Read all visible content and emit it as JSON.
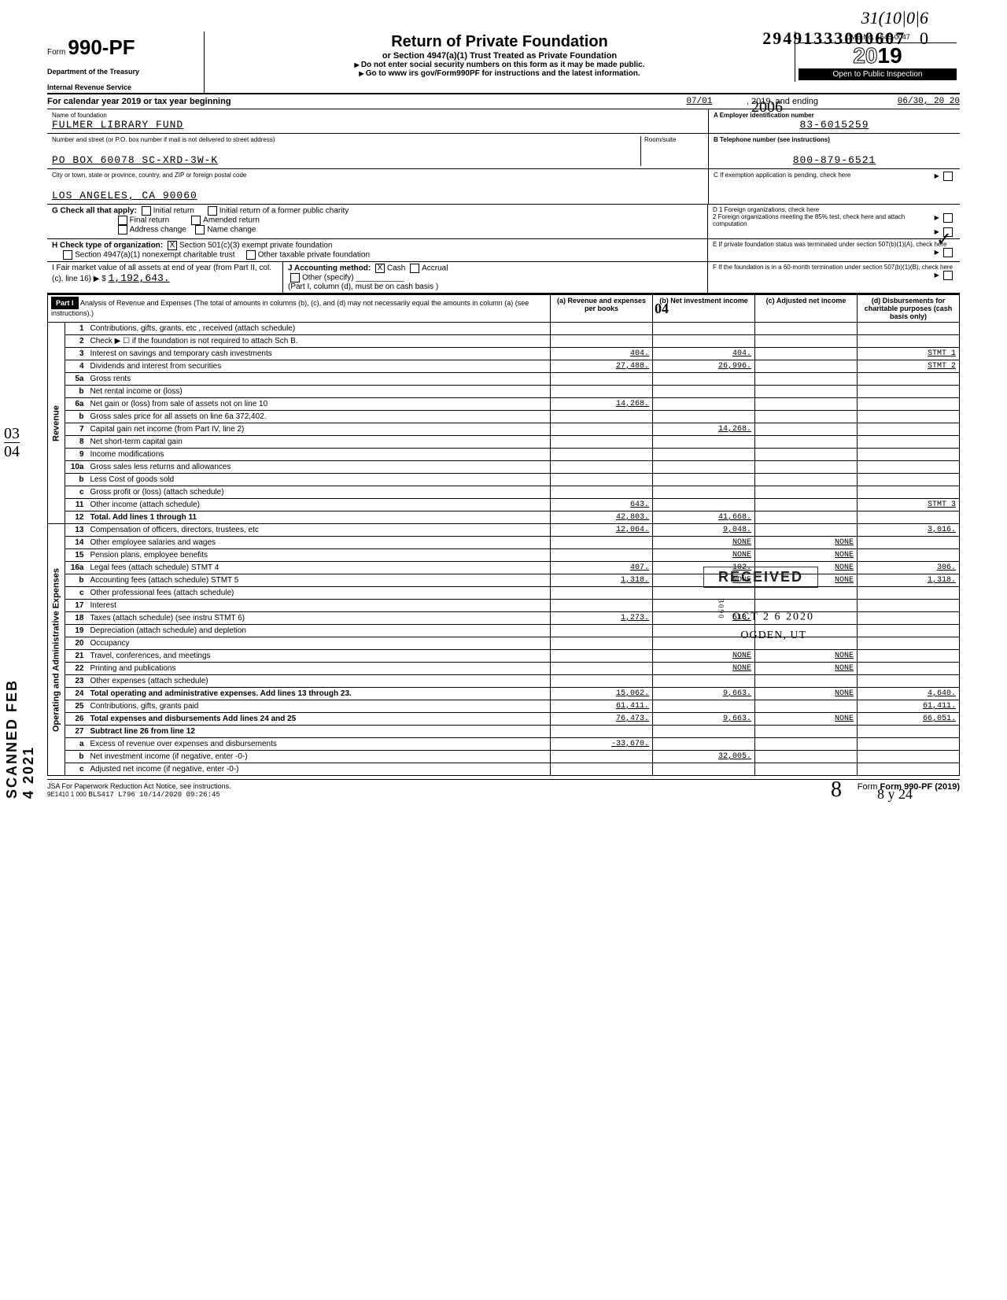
{
  "handwritten": {
    "top1": "31(10|0|6",
    "top2": "29491333000607",
    "zero": "0",
    "year2006": "2006",
    "checkmark": "✓",
    "frac_top": "03",
    "frac_bot": "04",
    "scan_text": "SCANNED FEB  4  2021",
    "h04": "04",
    "sig": "8",
    "h824": "8 y 24"
  },
  "header": {
    "form_word": "Form",
    "form_no": "990-PF",
    "dept1": "Department of the Treasury",
    "dept2": "Internal Revenue Service",
    "title": "Return of Private Foundation",
    "subtitle": "or Section 4947(a)(1) Trust Treated as Private Foundation",
    "note1": "Do not enter social security numbers on this form as it may be made public.",
    "note2": "Go to www irs gov/Form990PF for instructions and the latest information.",
    "omb": "OMB No. 1545-0047",
    "year_outline": "20",
    "year_bold": "19",
    "inspection": "Open to Public Inspection"
  },
  "calendar": {
    "label": "For calendar year 2019 or tax year beginning",
    "begin": "07/01",
    "mid": ", 2019, and ending",
    "end": "06/30, 20 20"
  },
  "name_block": {
    "name_label": "Name of foundation",
    "name": "FULMER LIBRARY FUND",
    "addr_label": "Number and street (or P.O. box number if mail is not delivered to street address)",
    "room_label": "Room/suite",
    "addr": "PO BOX 60078 SC-XRD-3W-K",
    "city_label": "City or town, state or province, country, and ZIP or foreign postal code",
    "city": "LOS ANGELES, CA 90060",
    "ein_label": "A  Employer identification number",
    "ein": "83-6015259",
    "phone_label": "B  Telephone number (see instructions)",
    "phone": "800-879-6521",
    "c_label": "C  If exemption application is pending, check here"
  },
  "boxG": {
    "label": "G  Check all that apply:",
    "opt1": "Initial return",
    "opt2": "Initial return of a former public charity",
    "opt3": "Final return",
    "opt4": "Amended return",
    "opt5": "Address change",
    "opt6": "Name change"
  },
  "boxD": {
    "d1": "D  1  Foreign organizations, check here",
    "d2": "2  Foreign organizations meeting the 85% test, check here and attach computation"
  },
  "boxH": {
    "label": "H  Check type of organization:",
    "opt1": "Section 501(c)(3) exempt private foundation",
    "opt2": "Section 4947(a)(1) nonexempt charitable trust",
    "opt3": "Other taxable private foundation"
  },
  "boxE": "E  If private foundation status was terminated under section 507(b)(1)(A), check here",
  "boxI": {
    "label": "I  Fair market value of all assets at end of year (from Part II, col. (c), line 16)",
    "value": "1,192,643.",
    "arrow": "▶ $"
  },
  "boxJ": {
    "label": "J Accounting method:",
    "cash": "Cash",
    "accrual": "Accrual",
    "other": "Other (specify)",
    "note": "(Part I, column (d), must be on cash basis )"
  },
  "boxF": "F  If the foundation is in a 60-month termination under section 507(b)(1)(B), check here",
  "part1": {
    "title": "Part I",
    "desc": "Analysis of Revenue and Expenses (The total of amounts in columns (b), (c), and (d) may not necessarily equal the amounts in column (a) (see instructions).)",
    "col_a": "(a) Revenue and expenses per books",
    "col_b": "(b) Net investment income",
    "col_c": "(c) Adjusted net income",
    "col_d": "(d) Disbursements for charitable purposes (cash basis only)"
  },
  "sidebars": {
    "revenue": "Revenue",
    "expenses": "Operating and Administrative Expenses"
  },
  "lines": [
    {
      "n": "1",
      "d": "Contributions, gifts, grants, etc , received (attach schedule)",
      "a": "",
      "b": "",
      "c": "",
      "dd": ""
    },
    {
      "n": "2",
      "d": "Check ▶ ☐  if the foundation is not required to attach Sch B.",
      "a": "",
      "b": "",
      "c": "",
      "dd": ""
    },
    {
      "n": "3",
      "d": "Interest on savings and temporary cash investments",
      "a": "404.",
      "b": "404.",
      "c": "",
      "dd": "STMT 1"
    },
    {
      "n": "4",
      "d": "Dividends and interest from securities",
      "a": "27,488.",
      "b": "26,996.",
      "c": "",
      "dd": "STMT 2"
    },
    {
      "n": "5a",
      "d": "Gross rents",
      "a": "",
      "b": "",
      "c": "",
      "dd": ""
    },
    {
      "n": "b",
      "d": "Net rental income or (loss)",
      "a": "",
      "b": "",
      "c": "",
      "dd": ""
    },
    {
      "n": "6a",
      "d": "Net gain or (loss) from sale of assets not on line 10",
      "a": "14,268.",
      "b": "",
      "c": "",
      "dd": ""
    },
    {
      "n": "b",
      "d": "Gross sales price for all assets on line 6a          372,402.",
      "a": "",
      "b": "",
      "c": "",
      "dd": ""
    },
    {
      "n": "7",
      "d": "Capital gain net income (from Part IV, line 2)",
      "a": "",
      "b": "14,268.",
      "c": "",
      "dd": ""
    },
    {
      "n": "8",
      "d": "Net short-term capital gain",
      "a": "",
      "b": "",
      "c": "",
      "dd": ""
    },
    {
      "n": "9",
      "d": "Income modifications",
      "a": "",
      "b": "",
      "c": "",
      "dd": ""
    },
    {
      "n": "10a",
      "d": "Gross sales less returns and allowances",
      "a": "",
      "b": "",
      "c": "",
      "dd": ""
    },
    {
      "n": "b",
      "d": "Less Cost of goods sold",
      "a": "",
      "b": "",
      "c": "",
      "dd": ""
    },
    {
      "n": "c",
      "d": "Gross profit or (loss) (attach schedule)",
      "a": "",
      "b": "",
      "c": "",
      "dd": ""
    },
    {
      "n": "11",
      "d": "Other income (attach schedule)",
      "a": "643.",
      "b": "",
      "c": "",
      "dd": "STMT 3"
    },
    {
      "n": "12",
      "d": "Total. Add lines 1 through 11",
      "a": "42,803.",
      "b": "41,668.",
      "c": "",
      "dd": ""
    },
    {
      "n": "13",
      "d": "Compensation of officers, directors, trustees, etc",
      "a": "12,064.",
      "b": "9,048.",
      "c": "",
      "dd": "3,016."
    },
    {
      "n": "14",
      "d": "Other employee salaries and wages",
      "a": "",
      "b": "NONE",
      "c": "NONE",
      "dd": ""
    },
    {
      "n": "15",
      "d": "Pension plans, employee benefits",
      "a": "",
      "b": "NONE",
      "c": "NONE",
      "dd": ""
    },
    {
      "n": "16a",
      "d": "Legal fees (attach schedule)   STMT 4",
      "a": "407.",
      "b": "102.",
      "c": "NONE",
      "dd": "306."
    },
    {
      "n": "b",
      "d": "Accounting fees (attach schedule) STMT 5",
      "a": "1,318.",
      "b": "NONE",
      "c": "NONE",
      "dd": "1,318."
    },
    {
      "n": "c",
      "d": "Other professional fees (attach schedule)",
      "a": "",
      "b": "",
      "c": "",
      "dd": ""
    },
    {
      "n": "17",
      "d": "Interest",
      "a": "",
      "b": "",
      "c": "",
      "dd": ""
    },
    {
      "n": "18",
      "d": "Taxes (attach schedule) (see instru STMT 6)",
      "a": "1,273.",
      "b": "513.",
      "c": "",
      "dd": ""
    },
    {
      "n": "19",
      "d": "Depreciation (attach schedule) and depletion",
      "a": "",
      "b": "",
      "c": "",
      "dd": ""
    },
    {
      "n": "20",
      "d": "Occupancy",
      "a": "",
      "b": "",
      "c": "",
      "dd": ""
    },
    {
      "n": "21",
      "d": "Travel, conferences, and meetings",
      "a": "",
      "b": "NONE",
      "c": "NONE",
      "dd": ""
    },
    {
      "n": "22",
      "d": "Printing and publications",
      "a": "",
      "b": "NONE",
      "c": "NONE",
      "dd": ""
    },
    {
      "n": "23",
      "d": "Other expenses (attach schedule)",
      "a": "",
      "b": "",
      "c": "",
      "dd": ""
    },
    {
      "n": "24",
      "d": "Total operating and administrative expenses. Add lines 13 through 23.",
      "a": "15,062.",
      "b": "9,663.",
      "c": "NONE",
      "dd": "4,640."
    },
    {
      "n": "25",
      "d": "Contributions, gifts, grants paid",
      "a": "61,411.",
      "b": "",
      "c": "",
      "dd": "61,411."
    },
    {
      "n": "26",
      "d": "Total expenses and disbursements  Add lines 24 and 25",
      "a": "76,473.",
      "b": "9,663.",
      "c": "NONE",
      "dd": "66,051."
    },
    {
      "n": "27",
      "d": "Subtract line 26 from line 12",
      "a": "",
      "b": "",
      "c": "",
      "dd": ""
    },
    {
      "n": "a",
      "d": "Excess of revenue over expenses and disbursements",
      "a": "-33,670.",
      "b": "",
      "c": "",
      "dd": ""
    },
    {
      "n": "b",
      "d": "Net investment income (if negative, enter -0-)",
      "a": "",
      "b": "32,005.",
      "c": "",
      "dd": ""
    },
    {
      "n": "c",
      "d": "Adjusted net income (if negative, enter -0-)",
      "a": "",
      "b": "",
      "c": "",
      "dd": ""
    }
  ],
  "stamp": {
    "received": "RECEIVED",
    "date": "OCT 2 6 2020",
    "ogden": "OGDEN, UT",
    "b090": "B090"
  },
  "footer": {
    "jsa": "JSA  For Paperwork Reduction Act Notice, see instructions.",
    "code": "9E1410 1 000",
    "stamp": "BLS417 L796 10/14/2020 09:26:45",
    "formref": "Form 990-PF (2019)"
  }
}
